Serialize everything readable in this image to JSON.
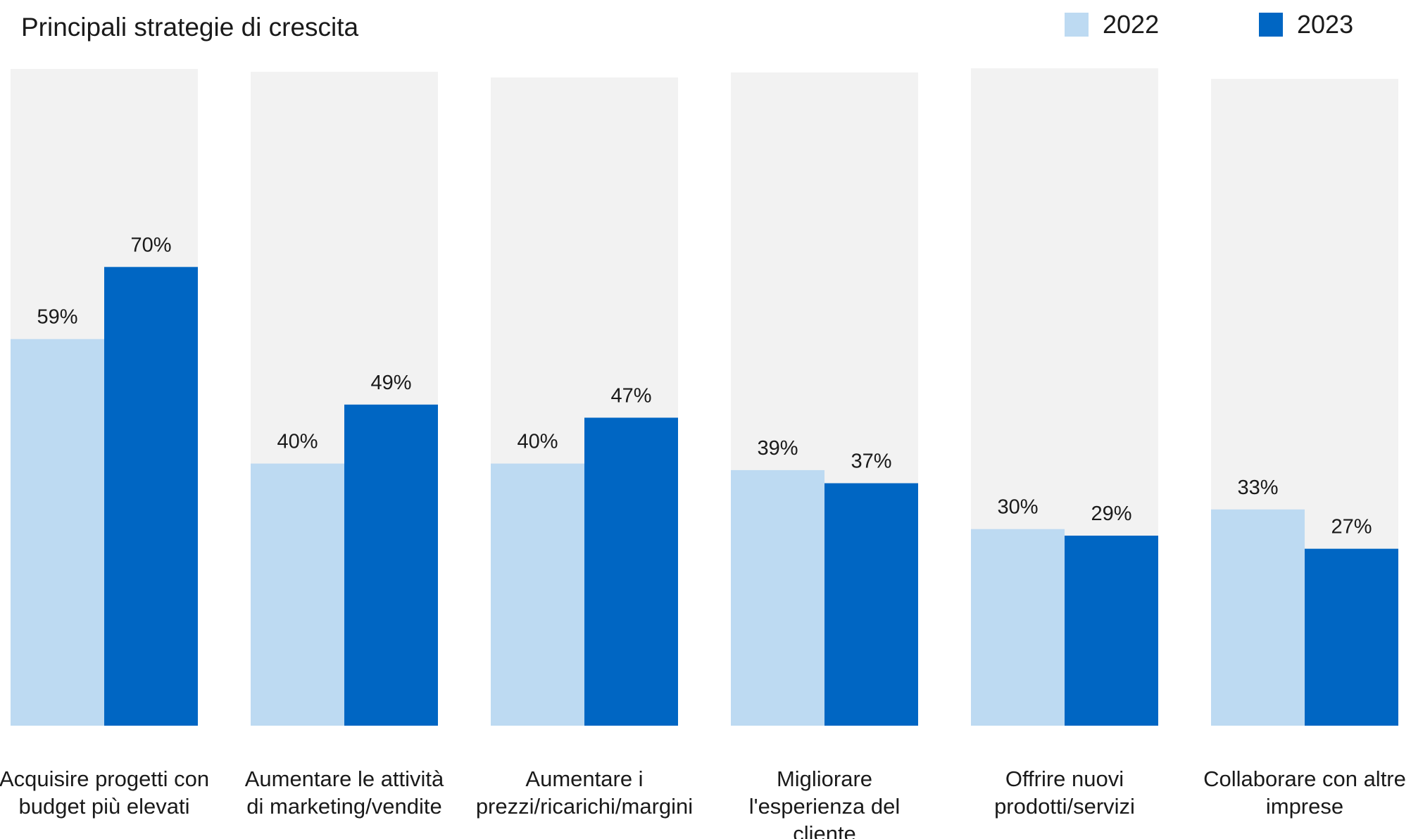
{
  "chart_data": {
    "type": "bar",
    "title": "Principali strategie di crescita",
    "categories": [
      [
        "Acquisire progetti con",
        "budget più elevati"
      ],
      [
        "Aumentare le attività",
        "di marketing/vendite"
      ],
      [
        "Aumentare i",
        "prezzi/ricarichi/margini"
      ],
      [
        "Migliorare",
        "l'esperienza del",
        "cliente"
      ],
      [
        "Offrire nuovi",
        "prodotti/servizi"
      ],
      [
        "Collaborare con altre",
        "imprese"
      ]
    ],
    "series": [
      {
        "name": "2022",
        "values": [
          59,
          40,
          40,
          39,
          30,
          33
        ],
        "labels": [
          "59%",
          "40%",
          "40%",
          "39%",
          "30%",
          "33%"
        ],
        "color": "#BDDAF2"
      },
      {
        "name": "2023",
        "values": [
          70,
          49,
          47,
          37,
          29,
          27
        ],
        "labels": [
          "70%",
          "49%",
          "47%",
          "37%",
          "29%",
          "27%"
        ],
        "color": "#0066C3"
      }
    ],
    "background_color": "#F2F2F2",
    "ylim": [
      0,
      100
    ],
    "legend_position": "top-right",
    "grid": false,
    "xlabel": "",
    "ylabel": ""
  }
}
